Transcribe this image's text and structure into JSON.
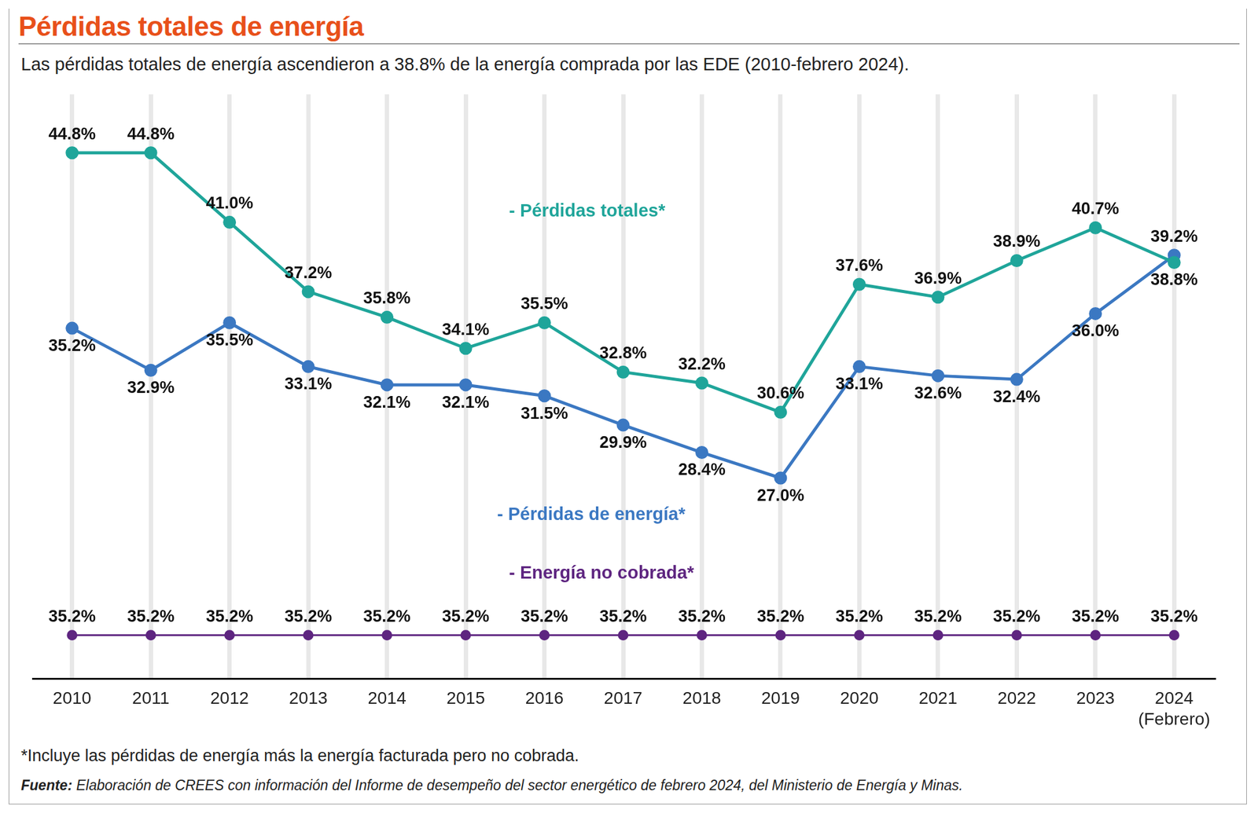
{
  "title": "Pérdidas totales de energía",
  "subtitle": "Las pérdidas totales de energía ascendieron a 38.8% de la energía comprada por las EDE (2010-febrero 2024).",
  "footnote": "*Incluye las pérdidas de energía más la energía facturada pero no cobrada.",
  "source_label": "Fuente:",
  "source": "Elaboración de CREES con información del Informe de desempeño del sector energético de febrero 2024, del Ministerio de Energía y Minas.",
  "chart_data": {
    "type": "line",
    "categories": [
      "2010",
      "2011",
      "2012",
      "2013",
      "2014",
      "2015",
      "2016",
      "2017",
      "2018",
      "2019",
      "2020",
      "2021",
      "2022",
      "2023",
      [
        "2024",
        "(Febrero)"
      ]
    ],
    "series": [
      {
        "name": "- Pérdidas totales*",
        "color": "#1fa59a",
        "values": [
          44.8,
          44.8,
          41.0,
          37.2,
          35.8,
          34.1,
          35.5,
          32.8,
          32.2,
          30.6,
          37.6,
          36.9,
          38.9,
          40.7,
          38.8
        ],
        "value_labels": [
          "44.8%",
          "44.8%",
          "41.0%",
          "37.2%",
          "35.8%",
          "34.1%",
          "35.5%",
          "32.8%",
          "32.2%",
          "30.6%",
          "37.6%",
          "36.9%",
          "38.9%",
          "40.7%",
          "38.8%"
        ]
      },
      {
        "name": "- Pérdidas de energía*",
        "color": "#3b78c2",
        "values": [
          35.2,
          32.9,
          35.5,
          33.1,
          32.1,
          32.1,
          31.5,
          29.9,
          28.4,
          27.0,
          33.1,
          32.6,
          32.4,
          36.0,
          39.2
        ],
        "value_labels": [
          "35.2%",
          "32.9%",
          "35.5%",
          "33.1%",
          "32.1%",
          "32.1%",
          "31.5%",
          "29.9%",
          "28.4%",
          "27.0%",
          "33.1%",
          "32.6%",
          "32.4%",
          "36.0%",
          "39.2%"
        ]
      },
      {
        "name": "- Energía no cobrada*",
        "color": "#5e2580",
        "axis": "y2",
        "values": [
          35.2,
          35.2,
          35.2,
          35.2,
          35.2,
          35.2,
          35.2,
          35.2,
          35.2,
          35.2,
          35.2,
          35.2,
          35.2,
          35.2,
          35.2
        ],
        "value_labels": [
          "35.2%",
          "35.2%",
          "35.2%",
          "35.2%",
          "35.2%",
          "35.2%",
          "35.2%",
          "35.2%",
          "35.2%",
          "35.2%",
          "35.2%",
          "35.2%",
          "35.2%",
          "35.2%",
          "35.2%"
        ]
      }
    ],
    "ylim": [
      16,
      48
    ],
    "yticks": [
      16,
      20,
      24,
      28,
      32,
      36,
      40,
      44,
      48
    ],
    "y2lim": [
      34,
      50
    ],
    "y2ticks": [
      34,
      38,
      42,
      46,
      50
    ],
    "tick_labels": "x",
    "grid": "x",
    "data_labels": true,
    "marker": "circle"
  }
}
